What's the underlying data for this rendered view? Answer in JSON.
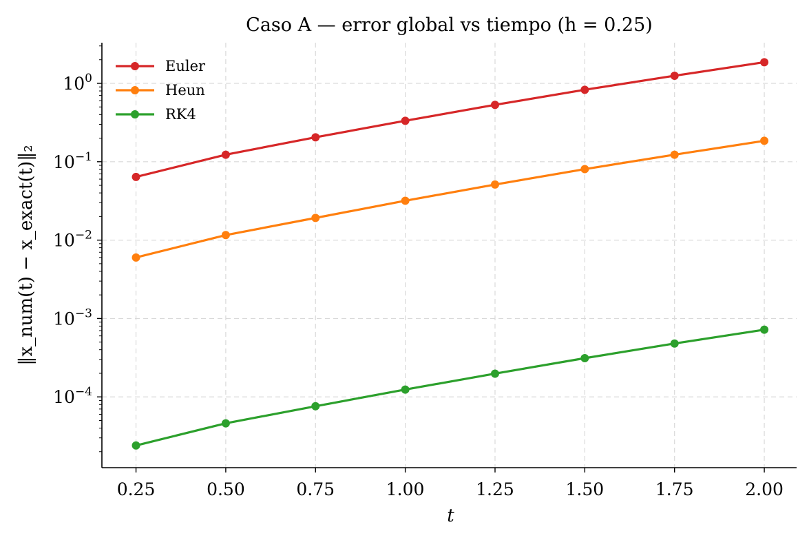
{
  "chart_data": {
    "type": "line",
    "title": "Caso A — error global vs tiempo (h = 0.25)",
    "xlabel": "t",
    "ylabel": "‖x_num(t) − x_exact(t)‖₂",
    "x": [
      0.25,
      0.5,
      0.75,
      1.0,
      1.25,
      1.5,
      1.75,
      2.0
    ],
    "x_tick_labels": [
      "0.25",
      "0.50",
      "0.75",
      "1.00",
      "1.25",
      "1.50",
      "1.75",
      "2.00"
    ],
    "y_scale": "log",
    "y_ticks": [
      {
        "base": "10",
        "exp": "0"
      },
      {
        "base": "10",
        "exp": "−1"
      },
      {
        "base": "10",
        "exp": "−2"
      },
      {
        "base": "10",
        "exp": "−3"
      },
      {
        "base": "10",
        "exp": "−4"
      }
    ],
    "xlim": [
      0.155,
      2.09
    ],
    "ylim": [
      1.25e-05,
      3.3
    ],
    "grid": true,
    "legend_position": "top-left",
    "series": [
      {
        "name": "Euler",
        "color": "#d62728",
        "values": [
          0.064,
          0.123,
          0.205,
          0.333,
          0.532,
          0.828,
          1.25,
          1.86
        ]
      },
      {
        "name": "Heun",
        "color": "#ff7f0e",
        "values": [
          0.006,
          0.0116,
          0.0192,
          0.0318,
          0.0512,
          0.0805,
          0.123,
          0.185
        ]
      },
      {
        "name": "RK4",
        "color": "#2ca02c",
        "values": [
          2.4e-05,
          4.6e-05,
          7.6e-05,
          0.000124,
          0.000198,
          0.000312,
          0.00048,
          0.00072
        ]
      }
    ]
  }
}
